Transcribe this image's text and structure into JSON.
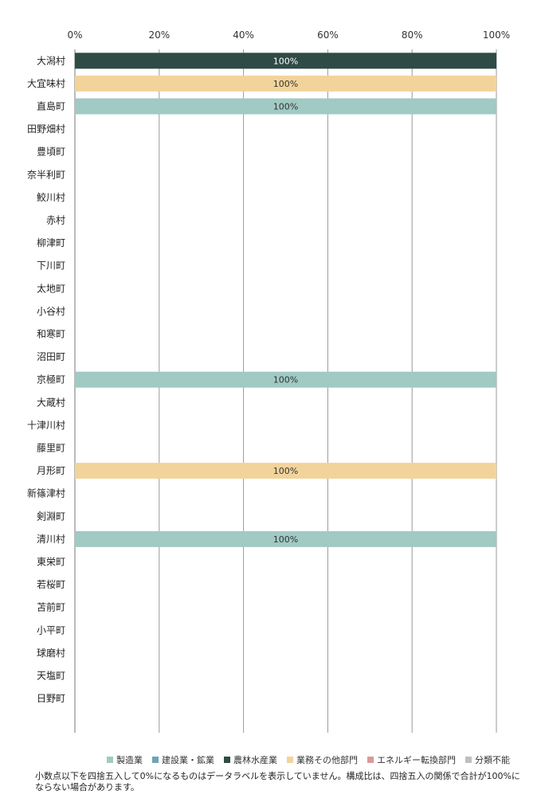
{
  "chart_data": {
    "type": "bar",
    "orientation": "horizontal",
    "stacked": true,
    "xlim": [
      0,
      100
    ],
    "x_ticks": [
      "0%",
      "20%",
      "40%",
      "60%",
      "80%",
      "100%"
    ],
    "grid": true,
    "legend_position": "bottom",
    "categories": [
      "大潟村",
      "大宜味村",
      "直島町",
      "田野畑村",
      "豊頃町",
      "奈半利町",
      "鮫川村",
      "赤村",
      "柳津町",
      "下川町",
      "太地町",
      "小谷村",
      "和寒町",
      "沼田町",
      "京極町",
      "大蔵村",
      "十津川村",
      "藤里町",
      "月形町",
      "新篠津村",
      "剣淵町",
      "清川村",
      "東栄町",
      "若桜町",
      "苫前町",
      "小平町",
      "球磨村",
      "天塩町",
      "日野町"
    ],
    "series": [
      {
        "name": "製造業",
        "color": "#a0cac3",
        "values": [
          0,
          0,
          100,
          0,
          0,
          0,
          0,
          0,
          0,
          0,
          0,
          0,
          0,
          0,
          100,
          0,
          0,
          0,
          0,
          0,
          0,
          100,
          0,
          0,
          0,
          0,
          0,
          0,
          0
        ]
      },
      {
        "name": "建設業・鉱業",
        "color": "#6fa3b5",
        "values": [
          0,
          0,
          0,
          0,
          0,
          0,
          0,
          0,
          0,
          0,
          0,
          0,
          0,
          0,
          0,
          0,
          0,
          0,
          0,
          0,
          0,
          0,
          0,
          0,
          0,
          0,
          0,
          0,
          0
        ]
      },
      {
        "name": "農林水産業",
        "color": "#2e4b45",
        "values": [
          100,
          0,
          0,
          0,
          0,
          0,
          0,
          0,
          0,
          0,
          0,
          0,
          0,
          0,
          0,
          0,
          0,
          0,
          0,
          0,
          0,
          0,
          0,
          0,
          0,
          0,
          0,
          0,
          0
        ]
      },
      {
        "name": "業務その他部門",
        "color": "#f2d49a",
        "values": [
          0,
          100,
          0,
          0,
          0,
          0,
          0,
          0,
          0,
          0,
          0,
          0,
          0,
          0,
          0,
          0,
          0,
          0,
          100,
          0,
          0,
          0,
          0,
          0,
          0,
          0,
          0,
          0,
          0
        ]
      },
      {
        "name": "エネルギー転換部門",
        "color": "#dc9898",
        "values": [
          0,
          0,
          0,
          0,
          0,
          0,
          0,
          0,
          0,
          0,
          0,
          0,
          0,
          0,
          0,
          0,
          0,
          0,
          0,
          0,
          0,
          0,
          0,
          0,
          0,
          0,
          0,
          0,
          0
        ]
      },
      {
        "name": "分類不能",
        "color": "#bfbfbf",
        "values": [
          0,
          0,
          0,
          0,
          0,
          0,
          0,
          0,
          0,
          0,
          0,
          0,
          0,
          0,
          0,
          0,
          0,
          0,
          0,
          0,
          0,
          0,
          0,
          0,
          0,
          0,
          0,
          0,
          0
        ]
      }
    ],
    "data_label_suffix": "%"
  },
  "footnote": "小数点以下を四捨五入して0%になるものはデータラベルを表示していません。構成比は、四捨五入の関係で合計が100%にならない場合があります。"
}
